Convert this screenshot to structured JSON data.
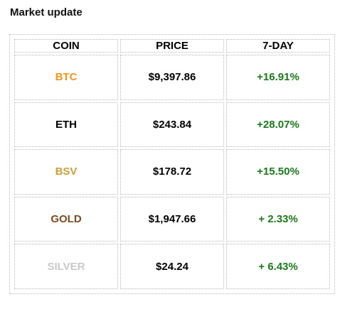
{
  "title": "Market update",
  "columns": [
    "COIN",
    "PRICE",
    "7-DAY"
  ],
  "rows": [
    {
      "coin": "BTC",
      "coin_color": "#f7931a",
      "price": "$9,397.86",
      "change": "+16.91%"
    },
    {
      "coin": "ETH",
      "coin_color": "#000000",
      "price": "$243.84",
      "change": "+28.07%"
    },
    {
      "coin": "BSV",
      "coin_color": "#c9a13a",
      "price": "$178.72",
      "change": "+15.50%"
    },
    {
      "coin": "GOLD",
      "coin_color": "#7a4a1e",
      "price": "$1,947.66",
      "change": "+ 2.33%"
    },
    {
      "coin": "SILVER",
      "coin_color": "#c8c8c8",
      "price": "$24.24",
      "change": "+ 6.43%"
    }
  ],
  "colors": {
    "change_positive": "#1a7a1a",
    "border": "#b8b8b8"
  }
}
